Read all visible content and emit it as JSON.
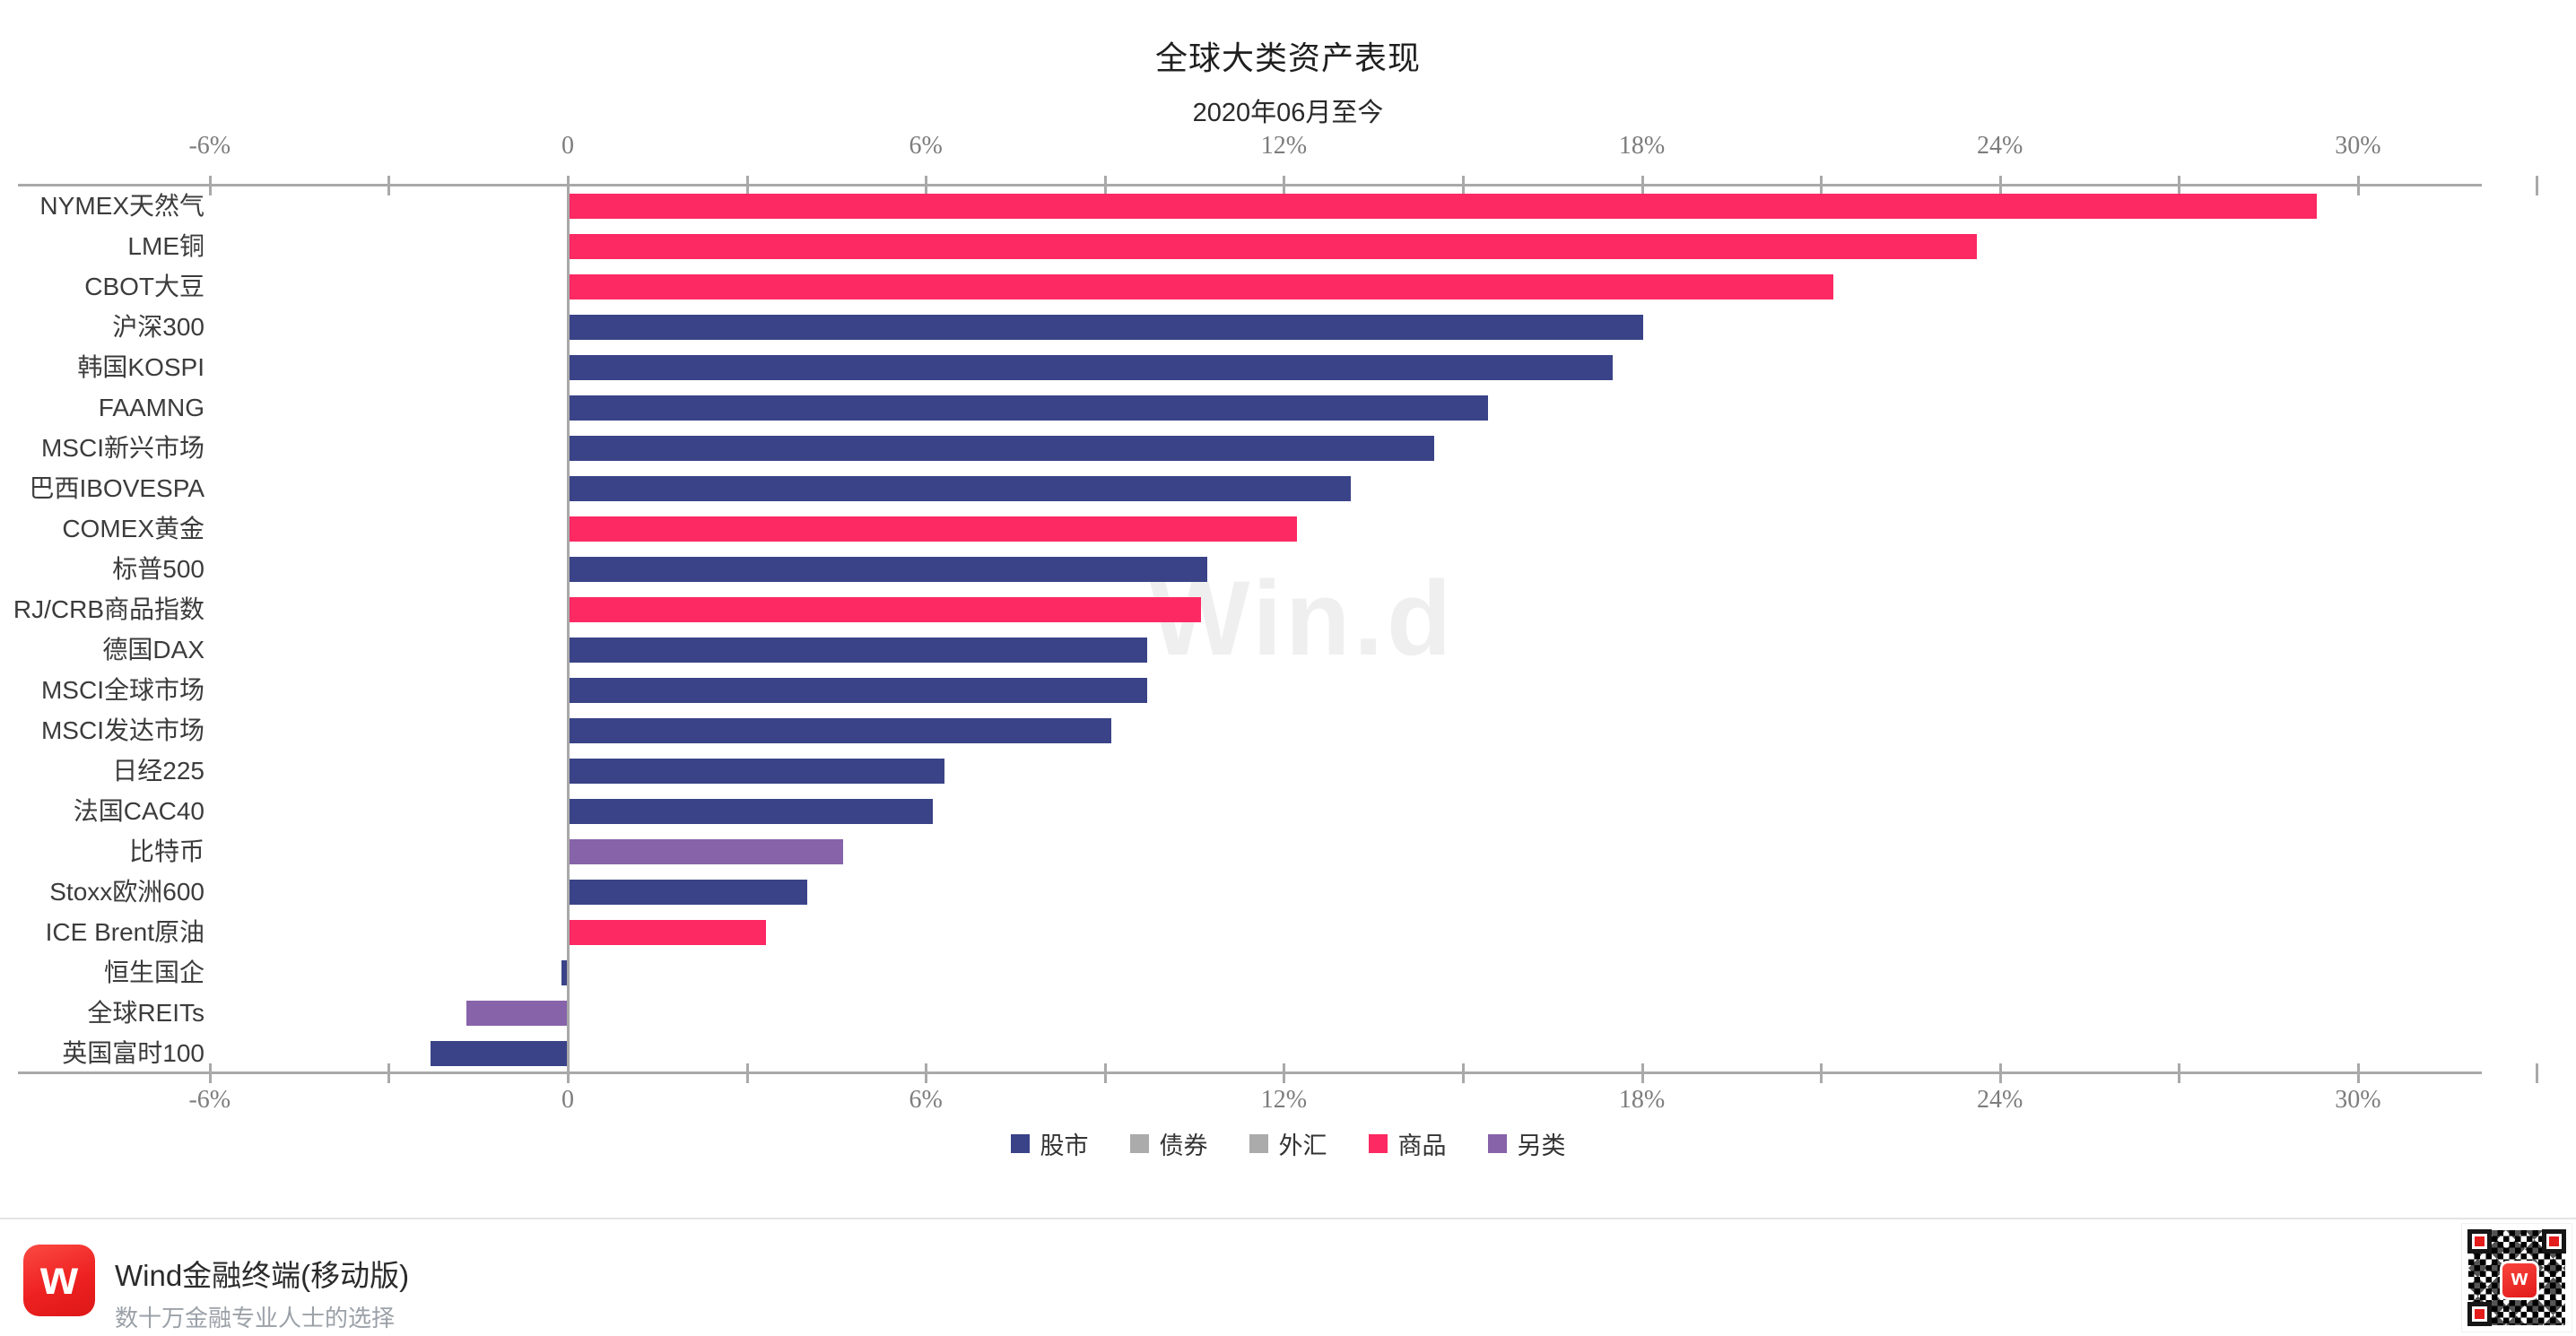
{
  "title": "全球大类资产表现",
  "subtitle": "2020年06月至今",
  "watermark": "Win.d",
  "chart_data": {
    "type": "bar",
    "orientation": "horizontal",
    "unit": "%",
    "title": "全球大类资产表现",
    "subtitle": "2020年06月至今",
    "axis_range": [
      -6,
      33
    ],
    "labeled_tick_step": 6,
    "minor_tick_step": 3,
    "axis_tick_labels": [
      "-6%",
      "0",
      "6%",
      "12%",
      "18%",
      "24%",
      "30%"
    ],
    "categories": [
      "NYMEX天然气",
      "LME铜",
      "CBOT大豆",
      "沪深300",
      "韩国KOSPI",
      "FAAMNG",
      "MSCI新兴市场",
      "巴西IBOVESPA",
      "COMEX黄金",
      "标普500",
      "RJ/CRB商品指数",
      "德国DAX",
      "MSCI全球市场",
      "MSCI发达市场",
      "日经225",
      "法国CAC40",
      "比特币",
      "Stoxx欧洲600",
      "ICE Brent原油",
      "恒生国企",
      "全球REITs",
      "英国富时100"
    ],
    "values": [
      29.3,
      23.6,
      21.2,
      18.0,
      17.5,
      15.4,
      14.5,
      13.1,
      12.2,
      10.7,
      10.6,
      9.7,
      9.7,
      9.1,
      6.3,
      6.1,
      4.6,
      4.0,
      3.3,
      -0.1,
      -1.7,
      -2.3
    ],
    "groups": [
      "商品",
      "商品",
      "商品",
      "股市",
      "股市",
      "股市",
      "股市",
      "股市",
      "商品",
      "股市",
      "商品",
      "股市",
      "股市",
      "股市",
      "股市",
      "股市",
      "另类",
      "股市",
      "商品",
      "股市",
      "另类",
      "股市"
    ],
    "legend": [
      {
        "label": "股市",
        "color": "#3a4387"
      },
      {
        "label": "债券",
        "color": "#ababab"
      },
      {
        "label": "外汇",
        "color": "#ababab"
      },
      {
        "label": "商品",
        "color": "#fc2962"
      },
      {
        "label": "另类",
        "color": "#8763aa"
      }
    ],
    "legend_position": "bottom",
    "grid": false,
    "axis_color": "#a9a9a9"
  },
  "footer": {
    "brand": "Wind金融终端(移动版)",
    "slogan": "数十万金融专业人士的选择",
    "logo_letter": "w"
  }
}
